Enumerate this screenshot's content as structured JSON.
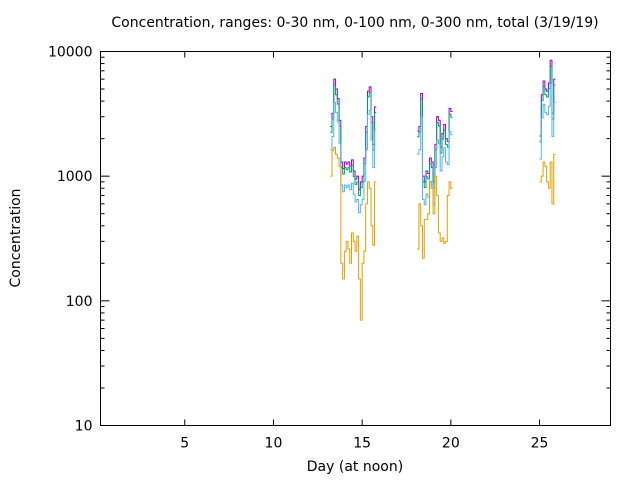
{
  "chart_data": {
    "type": "line",
    "title": "Concentration, ranges: 0-30 nm, 0-100 nm, 0-300 nm, total (3/19/19)",
    "xlabel": "Day (at noon)",
    "ylabel": "Concentration",
    "xlim": [
      0.25,
      29
    ],
    "ylim": [
      10,
      10000
    ],
    "yscale": "log",
    "xticks": [
      "5",
      "10",
      "15",
      "20",
      "25"
    ],
    "yticks": [
      "10",
      "100",
      "1000",
      "10000"
    ],
    "grid": false,
    "legend": "none",
    "x_segments": [
      {
        "start": 13.2,
        "step": 0.1
      },
      {
        "start": 18.1,
        "step": 0.1
      },
      {
        "start": 25.0,
        "step": 0.1
      }
    ],
    "series": [
      {
        "name": "total",
        "color": "#9400d3",
        "values": [
          [
            2500,
            3200,
            6000,
            5000,
            4200,
            2800,
            1300,
            1150,
            1300,
            1250,
            1300,
            1200,
            1350,
            1100,
            950,
            1000,
            780,
            900,
            1000,
            1400,
            2500,
            4800,
            5200,
            3000,
            1800,
            3600
          ],
          [
            2300,
            2500,
            4600,
            1000,
            900,
            1100,
            1050,
            1400,
            1300,
            900,
            1800,
            3000,
            2800,
            1700,
            2200,
            2600,
            2000,
            1900,
            3500,
            3300
          ],
          [
            2100,
            4500,
            5800,
            5000,
            4800,
            5600,
            8500,
            3200,
            6000
          ]
        ]
      },
      {
        "name": "0-300 nm",
        "color": "#009e73",
        "values": [
          [
            2250,
            2880,
            5400,
            4500,
            3780,
            2520,
            1170,
            1040,
            1170,
            1130,
            1170,
            1080,
            1220,
            990,
            860,
            900,
            700,
            810,
            900,
            1260,
            2250,
            4320,
            4680,
            2700,
            1620,
            3240
          ],
          [
            2070,
            2250,
            4140,
            900,
            810,
            990,
            950,
            1260,
            1170,
            810,
            1620,
            2700,
            2520,
            1530,
            1980,
            2340,
            1800,
            1710,
            3150,
            2970
          ],
          [
            1890,
            4050,
            5220,
            4500,
            4320,
            5040,
            7650,
            2880,
            5400
          ]
        ]
      },
      {
        "name": "0-100 nm",
        "color": "#56b4e9",
        "values": [
          [
            1630,
            2080,
            3900,
            3250,
            2730,
            1820,
            850,
            750,
            850,
            810,
            850,
            780,
            880,
            720,
            620,
            650,
            510,
            590,
            650,
            910,
            1630,
            3120,
            3380,
            1950,
            1170,
            2340
          ],
          [
            1500,
            1630,
            2990,
            650,
            590,
            720,
            680,
            910,
            850,
            590,
            1170,
            1950,
            1820,
            1100,
            1430,
            1690,
            1300,
            1240,
            2280,
            2150
          ],
          [
            1370,
            2930,
            3770,
            3250,
            3120,
            3640,
            5530,
            2080,
            3900
          ]
        ]
      },
      {
        "name": "0-30 nm",
        "color": "#e69f00",
        "values": [
          [
            1000,
            1600,
            1700,
            1500,
            1400,
            1200,
            200,
            150,
            250,
            300,
            260,
            200,
            350,
            300,
            250,
            330,
            150,
            70,
            200,
            250,
            600,
            900,
            800,
            400,
            280,
            900
          ],
          [
            260,
            600,
            400,
            220,
            450,
            450,
            500,
            900,
            800,
            500,
            1000,
            700,
            350,
            300,
            320,
            290,
            300,
            700,
            900,
            800
          ],
          [
            900,
            1000,
            1300,
            1200,
            900,
            800,
            1300,
            600,
            1500
          ]
        ]
      }
    ]
  }
}
